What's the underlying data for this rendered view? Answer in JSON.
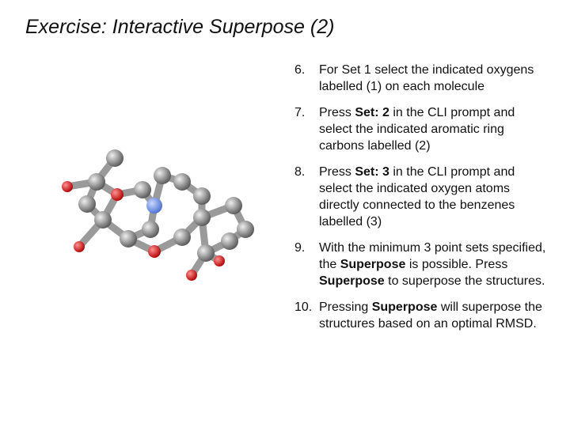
{
  "title": "Exercise: Interactive Superpose (2)",
  "steps": [
    {
      "number": "6.",
      "segments": [
        {
          "text": "For Set 1 select the indicated oxygens labelled (1)  on each molecule",
          "bold": false
        }
      ]
    },
    {
      "number": "7.",
      "segments": [
        {
          "text": "Press ",
          "bold": false
        },
        {
          "text": "Set: 2",
          "bold": true
        },
        {
          "text": " in the CLI prompt and select the indicated aromatic ring carbons labelled (2)",
          "bold": false
        }
      ]
    },
    {
      "number": "8.",
      "segments": [
        {
          "text": "Press ",
          "bold": false
        },
        {
          "text": "Set: 3",
          "bold": true
        },
        {
          "text": " in the CLI prompt and select the indicated oxygen atoms directly connected to the benzenes labelled (3)",
          "bold": false
        }
      ]
    },
    {
      "number": "9.",
      "segments": [
        {
          "text": "With the minimum 3 point sets specified, the ",
          "bold": false
        },
        {
          "text": "Superpose",
          "bold": true
        },
        {
          "text": " is possible. Press ",
          "bold": false
        },
        {
          "text": "Superpose",
          "bold": true
        },
        {
          "text": " to superpose the structures.",
          "bold": false
        }
      ]
    },
    {
      "number": "10.",
      "segments": [
        {
          "text": "Pressing ",
          "bold": false
        },
        {
          "text": "Superpose",
          "bold": true
        },
        {
          "text": " will superpose the structures based on an optimal RMSD.",
          "bold": false
        }
      ]
    }
  ]
}
